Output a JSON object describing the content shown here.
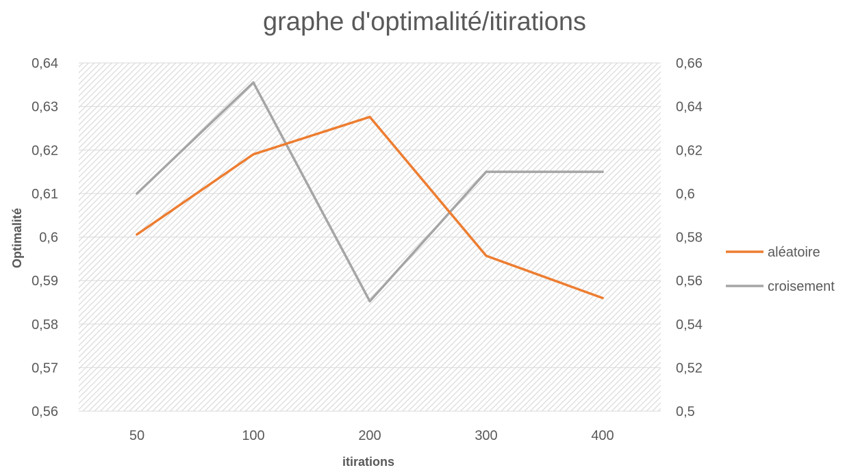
{
  "chart_data": {
    "type": "line",
    "title": "graphe d'optimalité/itirations",
    "xlabel": "itirations",
    "ylabel": "Optimalité",
    "y2label": "",
    "categories": [
      "50",
      "100",
      "200",
      "300",
      "400"
    ],
    "y_ticks": [
      "0,56",
      "0,57",
      "0,58",
      "0,59",
      "0,6",
      "0,61",
      "0,62",
      "0,63",
      "0,64"
    ],
    "y2_ticks": [
      "0,5",
      "0,52",
      "0,54",
      "0,56",
      "0,58",
      "0,6",
      "0,62",
      "0,64",
      "0,66"
    ],
    "ylim": [
      0.56,
      0.64
    ],
    "y2lim": [
      0.5,
      0.66
    ],
    "grid": true,
    "legend_position": "right",
    "series": [
      {
        "name": "aléatoire",
        "axis": "left",
        "color": "#ED7D31",
        "values": [
          0.6006,
          0.619,
          0.6276,
          0.5957,
          0.586
        ]
      },
      {
        "name": "croisement",
        "axis": "right",
        "color": "#A5A5A5",
        "values": [
          0.6,
          0.651,
          0.5505,
          0.61,
          0.61
        ]
      }
    ],
    "plot_background": "#D9D9D9",
    "gridline_color": "#D9D9D9"
  }
}
